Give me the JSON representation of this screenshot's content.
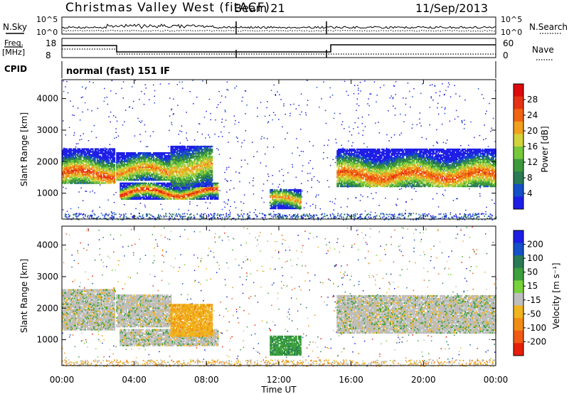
{
  "header": {
    "title": "Christmas Valley West (fitACF)",
    "beam": "Beam 21",
    "date": "11/Sep/2013"
  },
  "noise_panel": {
    "left_label": "N.Sky",
    "left_ticks": [
      "10^5",
      "10^0"
    ],
    "right_ticks": [
      "10^5",
      "10^0"
    ],
    "right_label": "N.Search"
  },
  "freq_panel": {
    "left_label_1": "Freq.",
    "left_label_2": "[MHz]",
    "left_ticks": [
      "18",
      "8"
    ],
    "right_ticks": [
      "60",
      "0"
    ],
    "right_label": "Nave"
  },
  "cpid": {
    "label": "CPID",
    "value": "normal (fast) 151 IF"
  },
  "chart_data": [
    {
      "type": "heatmap",
      "quantity": "Power",
      "ylabel": "Slant Range [km]",
      "xlabel": "",
      "ylim": [
        180,
        4600
      ],
      "xlim": [
        0,
        24
      ],
      "xticks": [
        "00:00",
        "04:00",
        "08:00",
        "12:00",
        "16:00",
        "20:00",
        "00:00"
      ],
      "yticks": [
        "1000",
        "2000",
        "3000",
        "4000"
      ],
      "colorbar": {
        "label": "Power [dB]",
        "ticks": [
          "4",
          "8",
          "12",
          "16",
          "20",
          "24",
          "28"
        ],
        "colors": [
          "#1e1ee6",
          "#1450c8",
          "#2a7a55",
          "#3c9a3c",
          "#78c83c",
          "#d2d23c",
          "#f0a01e",
          "#f06414",
          "#e63214",
          "#dc0a0a"
        ]
      },
      "bands": [
        {
          "t0": 0.0,
          "t1": 2.9,
          "range0": 1300,
          "range1": 2400,
          "core": 1600,
          "peak": 26
        },
        {
          "t0": 3.0,
          "t1": 6.0,
          "range0": 1400,
          "range1": 2300,
          "core": 1700,
          "peak": 22
        },
        {
          "t0": 3.2,
          "t1": 8.6,
          "range0": 800,
          "range1": 1300,
          "core": 1000,
          "peak": 27
        },
        {
          "t0": 6.0,
          "t1": 8.3,
          "range0": 1200,
          "range1": 2500,
          "core": 1800,
          "peak": 20
        },
        {
          "t0": 11.5,
          "t1": 13.2,
          "range0": 500,
          "range1": 1100,
          "core": 750,
          "peak": 22
        },
        {
          "t0": 15.2,
          "t1": 24.0,
          "range0": 1200,
          "range1": 2400,
          "core": 1550,
          "peak": 25
        }
      ]
    },
    {
      "type": "heatmap",
      "quantity": "Velocity",
      "ylabel": "Slant Range [km]",
      "xlabel": "Time UT",
      "ylim": [
        180,
        4600
      ],
      "xlim": [
        0,
        24
      ],
      "xticks": [
        "00:00",
        "04:00",
        "08:00",
        "12:00",
        "16:00",
        "20:00",
        "00:00"
      ],
      "yticks": [
        "1000",
        "2000",
        "3000",
        "4000"
      ],
      "colorbar": {
        "label": "Velocity [m s⁻¹]",
        "ticks": [
          "200",
          "100",
          "50",
          "15",
          "-15",
          "-50",
          "-100",
          "-200"
        ],
        "colors": [
          "#1e1ee6",
          "#1450c8",
          "#2a7a55",
          "#3ca03c",
          "#78d23c",
          "#bebebe",
          "#f0b41e",
          "#f08c14",
          "#f05a14",
          "#e61e0a"
        ]
      },
      "bands": [
        {
          "t0": 0.0,
          "t1": 2.9,
          "range0": 1300,
          "range1": 2600,
          "velocity": 0
        },
        {
          "t0": 3.0,
          "t1": 6.0,
          "range0": 1400,
          "range1": 2400,
          "velocity": 0
        },
        {
          "t0": 3.2,
          "t1": 8.6,
          "range0": 800,
          "range1": 1300,
          "velocity": 0
        },
        {
          "t0": 6.0,
          "t1": 8.3,
          "range0": 1100,
          "range1": 2100,
          "velocity": -40
        },
        {
          "t0": 11.5,
          "t1": 13.2,
          "range0": 500,
          "range1": 1100,
          "velocity": 40
        },
        {
          "t0": 15.2,
          "t1": 24.0,
          "range0": 1200,
          "range1": 2400,
          "velocity": 0
        }
      ]
    }
  ]
}
